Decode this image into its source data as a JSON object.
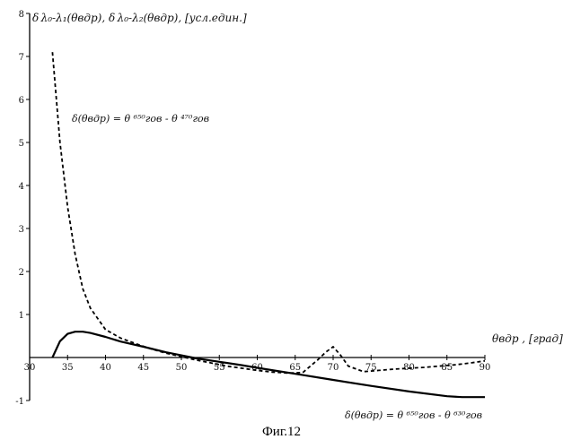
{
  "chart_data": {
    "type": "line",
    "xlim": [
      30,
      90
    ],
    "ylim": [
      -1,
      8
    ],
    "x_ticks": [
      30,
      35,
      40,
      45,
      50,
      55,
      60,
      65,
      70,
      75,
      80,
      85,
      90
    ],
    "y_ticks": [
      -1,
      1,
      2,
      3,
      4,
      5,
      6,
      7,
      8
    ],
    "grid": false,
    "series": [
      {
        "style": "dashed",
        "x": [
          33,
          34,
          35,
          36,
          37,
          38,
          40,
          42,
          44,
          46,
          48,
          50,
          52,
          54,
          56,
          58,
          60,
          62,
          64,
          66,
          68,
          69,
          70,
          71,
          72,
          74,
          76,
          78,
          80,
          82,
          84,
          86,
          88,
          90
        ],
        "y": [
          7.1,
          5.0,
          3.5,
          2.4,
          1.6,
          1.15,
          0.65,
          0.45,
          0.32,
          0.2,
          0.1,
          0.02,
          -0.06,
          -0.13,
          -0.2,
          -0.25,
          -0.3,
          -0.34,
          -0.36,
          -0.35,
          -0.05,
          0.12,
          0.25,
          0.05,
          -0.2,
          -0.33,
          -0.3,
          -0.27,
          -0.25,
          -0.23,
          -0.2,
          -0.17,
          -0.13,
          -0.08
        ]
      },
      {
        "style": "solid",
        "x": [
          33,
          34,
          35,
          36,
          37,
          38,
          40,
          42,
          45,
          48,
          50,
          52,
          55,
          58,
          60,
          65,
          70,
          75,
          80,
          85,
          87,
          90
        ],
        "y": [
          0.0,
          0.38,
          0.55,
          0.6,
          0.6,
          0.57,
          0.48,
          0.37,
          0.25,
          0.12,
          0.05,
          -0.02,
          -0.1,
          -0.18,
          -0.24,
          -0.38,
          -0.52,
          -0.66,
          -0.79,
          -0.9,
          -0.92,
          -0.92
        ]
      }
    ]
  },
  "labels": {
    "y_axis_label": "δ λ₀-λ₁(θвдр), δ λ₀-λ₂(θвдр), [усл.един.]",
    "x_axis_label": "θвдр , [град]",
    "dashed_formula": "δ(θвдр) = θ ⁶⁵⁰гов - θ ⁴⁷⁰гов",
    "solid_formula": "δ(θвдр) = θ ⁶⁵⁰гов - θ ⁶³⁰гов"
  },
  "caption": "Фиг.12"
}
